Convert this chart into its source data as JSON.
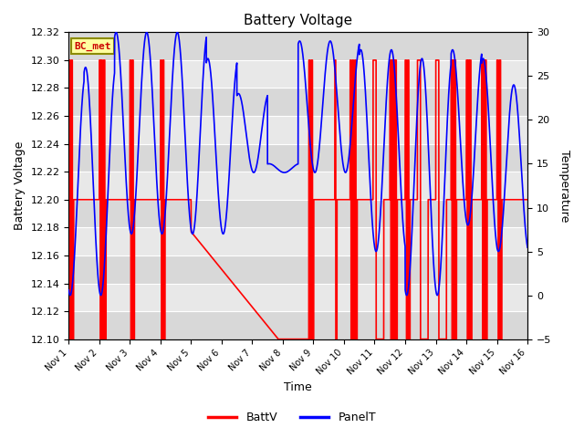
{
  "title": "Battery Voltage",
  "xlabel": "Time",
  "ylabel_left": "Battery Voltage",
  "ylabel_right": "Temperature",
  "ylim_left": [
    12.1,
    12.32
  ],
  "ylim_right": [
    -5,
    30
  ],
  "yticks_left": [
    12.1,
    12.12,
    12.14,
    12.16,
    12.18,
    12.2,
    12.22,
    12.24,
    12.26,
    12.28,
    12.3,
    12.32
  ],
  "yticks_right": [
    -5,
    0,
    5,
    10,
    15,
    20,
    25,
    30
  ],
  "xtick_labels": [
    "Nov 1",
    "Nov 2",
    "Nov 3",
    "Nov 4",
    "Nov 5",
    "Nov 6",
    "Nov 7",
    "Nov 8",
    "Nov 9",
    "Nov 10",
    "Nov 11",
    "Nov 12",
    "Nov 13",
    "Nov 14",
    "Nov 15",
    "Nov 16"
  ],
  "legend_label_red": "BattV",
  "legend_label_blue": "PanelT",
  "annotation_text": "BC_met",
  "annotation_bg": "#ffffa0",
  "annotation_border": "#8b8b00",
  "annotation_text_color": "#cc0000",
  "grid_color": "#cccccc",
  "plot_bg_color": "#e8e8e8",
  "red_color": "#ff0000",
  "blue_color": "#0000ff",
  "line_width": 1.2
}
